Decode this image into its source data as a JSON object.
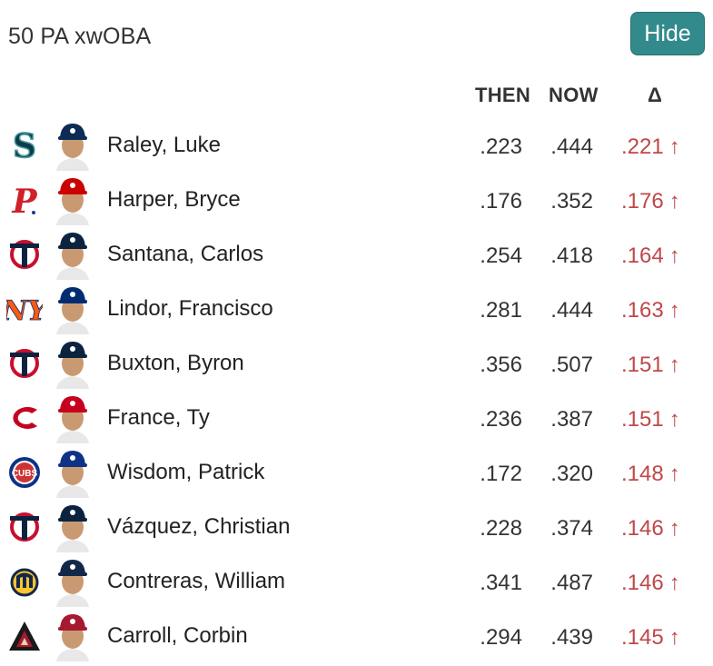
{
  "title": "50 PA xwOBA",
  "hide_label": "Hide",
  "headers": {
    "then": "THEN",
    "now": "NOW",
    "delta": "Δ"
  },
  "colors": {
    "accent": "#338a8c",
    "increase": "#c0474a"
  },
  "arrow": "↑",
  "rows": [
    {
      "team": "Mariners",
      "team_icon": "mariners-logo-icon",
      "name": "Raley, Luke",
      "then": ".223",
      "now": ".444",
      "delta": ".221"
    },
    {
      "team": "Phillies",
      "team_icon": "phillies-logo-icon",
      "name": "Harper, Bryce",
      "then": ".176",
      "now": ".352",
      "delta": ".176"
    },
    {
      "team": "Twins",
      "team_icon": "twins-logo-icon",
      "name": "Santana, Carlos",
      "then": ".254",
      "now": ".418",
      "delta": ".164"
    },
    {
      "team": "Mets",
      "team_icon": "mets-logo-icon",
      "name": "Lindor, Francisco",
      "then": ".281",
      "now": ".444",
      "delta": ".163"
    },
    {
      "team": "Twins",
      "team_icon": "twins-logo-icon",
      "name": "Buxton, Byron",
      "then": ".356",
      "now": ".507",
      "delta": ".151"
    },
    {
      "team": "Reds",
      "team_icon": "reds-logo-icon",
      "name": "France, Ty",
      "then": ".236",
      "now": ".387",
      "delta": ".151"
    },
    {
      "team": "Cubs",
      "team_icon": "cubs-logo-icon",
      "name": "Wisdom, Patrick",
      "then": ".172",
      "now": ".320",
      "delta": ".148"
    },
    {
      "team": "Twins",
      "team_icon": "twins-logo-icon",
      "name": "Vázquez, Christian",
      "then": ".228",
      "now": ".374",
      "delta": ".146"
    },
    {
      "team": "Brewers",
      "team_icon": "brewers-logo-icon",
      "name": "Contreras, William",
      "then": ".341",
      "now": ".487",
      "delta": ".146"
    },
    {
      "team": "Diamondbacks",
      "team_icon": "diamondbacks-logo-icon",
      "name": "Carroll, Corbin",
      "then": ".294",
      "now": ".439",
      "delta": ".145"
    }
  ]
}
